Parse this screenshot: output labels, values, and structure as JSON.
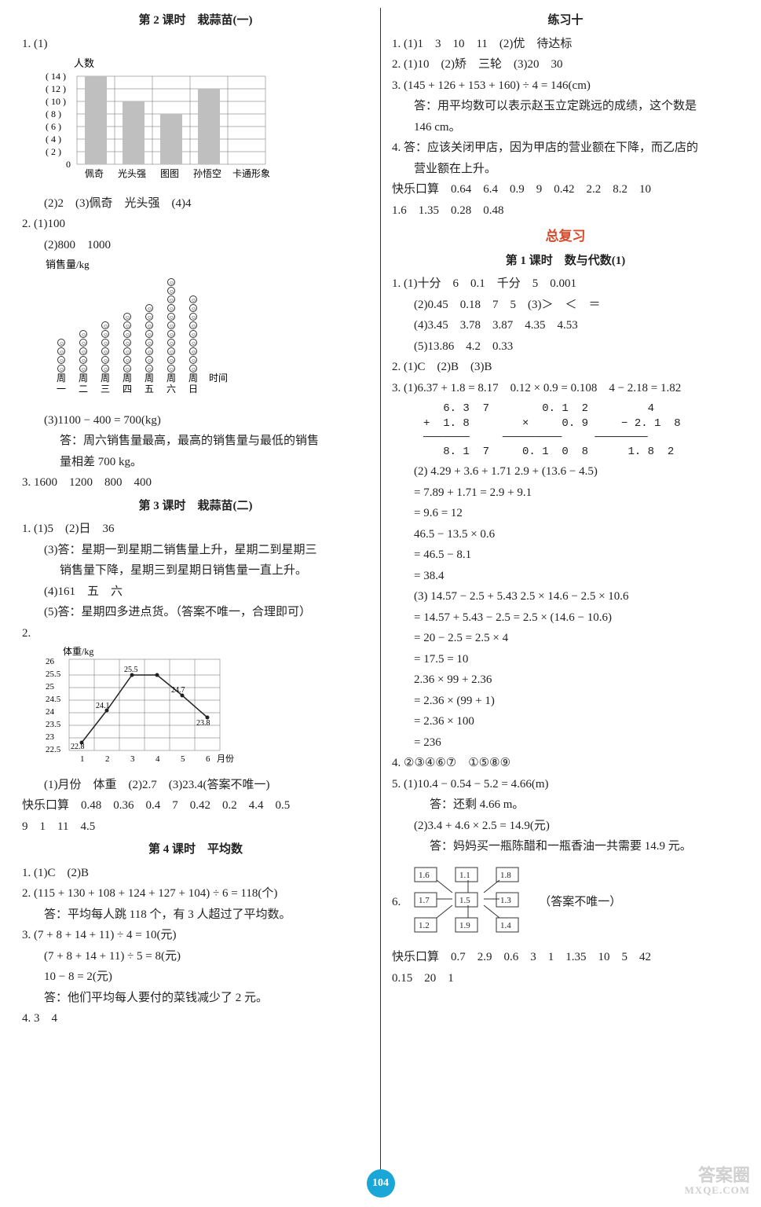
{
  "left": {
    "lesson2_title": "第 2 课时　栽蒜苗(一)",
    "q1_1_lead": "1. (1)",
    "bar_chart": {
      "type": "bar",
      "y_label": "人数",
      "y_ticks": [
        "( 14 )",
        "( 12 )",
        "( 10 )",
        "(  8 )",
        "(  6 )",
        "(  4 )",
        "(  2 )",
        "0"
      ],
      "categories": [
        "佩奇",
        "光头强",
        "图图",
        "孙悟空"
      ],
      "x_label_tail": "卡通形象",
      "values": [
        14,
        10,
        8,
        12
      ],
      "bar_color": "#bfbfbf",
      "grid_color": "#666666",
      "background_color": "#ffffff",
      "ymax": 14,
      "ytick_step": 2
    },
    "q1_2": "(2)2　(3)佩奇　光头强　(4)4",
    "q2_1": "2. (1)100",
    "q2_2": "(2)800　1000",
    "stack_chart": {
      "type": "stacked-dots",
      "y_label": "销售量/kg",
      "x_label": "时间",
      "categories": [
        "周一",
        "周二",
        "周三",
        "周四",
        "周五",
        "周六",
        "周日"
      ],
      "values": [
        4,
        5,
        6,
        7,
        8,
        11,
        9
      ],
      "dot_color": "#ffffff",
      "dot_stroke": "#333333",
      "unit_per_dot": 100
    },
    "q2_3a": "(3)1100 − 400 = 700(kg)",
    "q2_3b": "答：周六销售量最高，最高的销售量与最低的销售",
    "q2_3c": "量相差 700 kg。",
    "q3": "3. 1600　1200　800　400",
    "lesson3_title": "第 3 课时　栽蒜苗(二)",
    "l3_q1_1": "1. (1)5　(2)日　36",
    "l3_q1_3a": "(3)答：星期一到星期二销售量上升，星期二到星期三",
    "l3_q1_3b": "销售量下降，星期三到星期日销售量一直上升。",
    "l3_q1_4": "(4)161　五　六",
    "l3_q1_5": "(5)答：星期四多进点货。（答案不唯一，合理即可）",
    "l3_q2_lead": "2.",
    "line_chart": {
      "type": "line",
      "y_label": "体重/kg",
      "x_label": "月份",
      "y_ticks": [
        26,
        25.5,
        25,
        24.5,
        24,
        23.5,
        23,
        22.5
      ],
      "x_ticks": [
        1,
        2,
        3,
        4,
        5,
        6
      ],
      "points": [
        [
          1,
          22.8
        ],
        [
          2,
          24.1
        ],
        [
          3,
          25.5
        ],
        [
          4,
          25.5
        ],
        [
          5,
          24.7
        ],
        [
          6,
          23.8
        ]
      ],
      "point_labels": [
        "22.8",
        "24.1",
        "25.5",
        "",
        "24.7",
        "23.8"
      ],
      "line_color": "#222222",
      "grid_color": "#666666",
      "ylim": [
        22.5,
        26
      ]
    },
    "l3_chart_ans": "(1)月份　体重　(2)2.7　(3)23.4(答案不唯一)",
    "l3_kousuan_a": "快乐口算　0.48　0.36　0.4　7　0.42　0.2　4.4　0.5",
    "l3_kousuan_b": "9　1　11　4.5",
    "lesson4_title": "第 4 课时　平均数",
    "l4_q1": "1. (1)C　(2)B",
    "l4_q2a": "2. (115 + 130 + 108 + 124 + 127 + 104) ÷ 6 = 118(个)",
    "l4_q2b": "答：平均每人跳 118 个，有 3 人超过了平均数。",
    "l4_q3a": "3. (7 + 8 + 14 + 11) ÷ 4 = 10(元)",
    "l4_q3b": "(7 + 8 + 14 + 11) ÷ 5 = 8(元)",
    "l4_q3c": "10 − 8 = 2(元)",
    "l4_q3d": "答：他们平均每人要付的菜钱减少了 2 元。",
    "l4_q4": "4. 3　4"
  },
  "right": {
    "ex10_title": "练习十",
    "e1": "1. (1)1　3　10　11　(2)优　待达标",
    "e2": "2. (1)10　(2)矫　三轮　(3)20　30",
    "e3a": "3. (145 + 126 + 153 + 160) ÷ 4 = 146(cm)",
    "e3b": "答：用平均数可以表示赵玉立定跳远的成绩，这个数是",
    "e3c": "146 cm。",
    "e4a": "4. 答：应该关闭甲店，因为甲店的营业额在下降，而乙店的",
    "e4b": "营业额在上升。",
    "e_kousuan_a": "快乐口算　0.64　6.4　0.9　9　0.42　2.2　8.2　10",
    "e_kousuan_b": "1.6　1.35　0.28　0.48",
    "review_title": "总复习",
    "rev1_title": "第 1 课时　数与代数(1)",
    "r1_1": "1. (1)十分　6　0.1　千分　5　0.001",
    "r1_2": "(2)0.45　0.18　7　5　(3)＞　＜　＝",
    "r1_4": "(4)3.45　3.78　3.87　4.35　4.53",
    "r1_5": "(5)13.86　4.2　0.33",
    "r2": "2. (1)C　(2)B　(3)B",
    "r3_head": "3. (1)6.37 + 1.8 = 8.17　0.12 × 0.9 = 0.108　4 − 2.18 = 1.82",
    "calc1": "   6. 3  7        0. 1  2         4\n+  1. 8        ×     0. 9     − 2. 1  8\n───────     ─────────     ────────\n   8. 1  7     0. 1  0  8      1. 8  2",
    "r3_2a": "(2)  4.29 + 3.6 + 1.71          2.9 + (13.6 − 4.5)",
    "r3_2b": "    = 7.89 + 1.71             = 2.9 + 9.1",
    "r3_2c": "    = 9.6                     = 12",
    "r3_2d": "      46.5 − 13.5 × 0.6",
    "r3_2e": "    = 46.5 − 8.1",
    "r3_2f": "    = 38.4",
    "r3_3a": "(3)  14.57 − 2.5 + 5.43      2.5 × 14.6 − 2.5 × 10.6",
    "r3_3b": "    = 14.57 + 5.43 − 2.5    = 2.5 × (14.6 − 10.6)",
    "r3_3c": "    = 20 − 2.5              = 2.5 × 4",
    "r3_3d": "    = 17.5                  = 10",
    "r3_3e": "      2.36 × 99 + 2.36",
    "r3_3f": "    = 2.36 × (99 + 1)",
    "r3_3g": "    = 2.36 × 100",
    "r3_3h": "    = 236",
    "r4": "4. ②③④⑥⑦　①⑤⑧⑨",
    "r5_1a": "5. (1)10.4 − 0.54 − 5.2 = 4.66(m)",
    "r5_1b": "答：还剩 4.66 m。",
    "r5_2a": "(2)3.4 + 4.6 × 2.5 = 14.9(元)",
    "r5_2b": "答：妈妈买一瓶陈醋和一瓶香油一共需要 14.9 元。",
    "r6_lead": "6.",
    "grid_note": "（答案不唯一）",
    "grid": {
      "type": "3x3-grid",
      "cells": [
        [
          "1.6",
          "1.1",
          "1.8"
        ],
        [
          "1.7",
          "1.5",
          "1.3"
        ],
        [
          "1.2",
          "1.9",
          "1.4"
        ]
      ],
      "border_color": "#333333"
    },
    "r_kousuan_a": "快乐口算　0.7　2.9　0.6　3　1　1.35　10　5　42",
    "r_kousuan_b": "0.15　20　1"
  },
  "page_number": "104",
  "watermark": {
    "main": "答案圈",
    "sub": "MXQE.COM"
  }
}
